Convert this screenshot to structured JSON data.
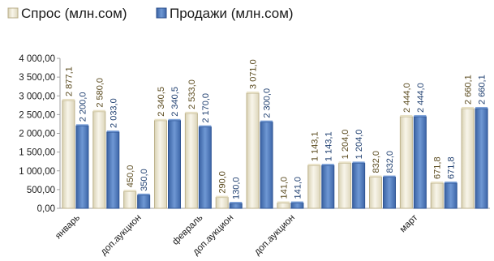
{
  "chart_data": {
    "type": "bar",
    "title": "",
    "xlabel": "",
    "ylabel": "",
    "ylim": [
      0,
      4000
    ],
    "yticks": [
      0,
      500,
      1000,
      1500,
      2000,
      2500,
      3000,
      3500,
      4000
    ],
    "ytick_labels": [
      "0,00",
      "500,00",
      "1 000,00",
      "1 500,00",
      "2 000,00",
      "2 500,00",
      "3 000,00",
      "3 500,00",
      "4 000,00"
    ],
    "grid": false,
    "legend_position": "top-left",
    "categories": [
      "январь",
      "",
      "доп.аукцион",
      "",
      "февраль",
      "доп.аукцион",
      "",
      "доп.аукцион",
      "",
      "",
      "",
      "март",
      "",
      ""
    ],
    "category_label_text": [
      "январь",
      "доп.аукцион",
      "февраль",
      "доп.аукцион",
      "доп.аукцион",
      "март"
    ],
    "series": [
      {
        "name": "Спрос (млн.сом)",
        "values": [
          2877.1,
          2580.0,
          450.0,
          2340.5,
          2533.0,
          290.0,
          3071.0,
          141.0,
          1143.1,
          1204.0,
          832.0,
          2444.0,
          671.8,
          2660.1
        ],
        "labels": [
          "2 877,1",
          "2 580,0",
          "450,0",
          "2 340,5",
          "2 533,0",
          "290,0",
          "3 071,0",
          "141,0",
          "1 143,1",
          "1 204,0",
          "832,0",
          "2 444,0",
          "671,8",
          "2 660,1"
        ],
        "color": "#f0ebd6"
      },
      {
        "name": "Продажи (млн.сом)",
        "values": [
          2200.0,
          2033.0,
          350.0,
          2340.5,
          2170.0,
          130.0,
          2300.0,
          141.0,
          1143.1,
          1204.0,
          832.0,
          2444.0,
          671.8,
          2660.1
        ],
        "labels": [
          "2 200,0",
          "2 033,0",
          "350,0",
          "2 340,5",
          "2 170,0",
          "130,0",
          "2 300,0",
          "141,0",
          "1 143,1",
          "1 204,0",
          "832,0",
          "2 444,0",
          "671,8",
          "2 660,1"
        ],
        "color": "#4e78b8"
      }
    ]
  }
}
